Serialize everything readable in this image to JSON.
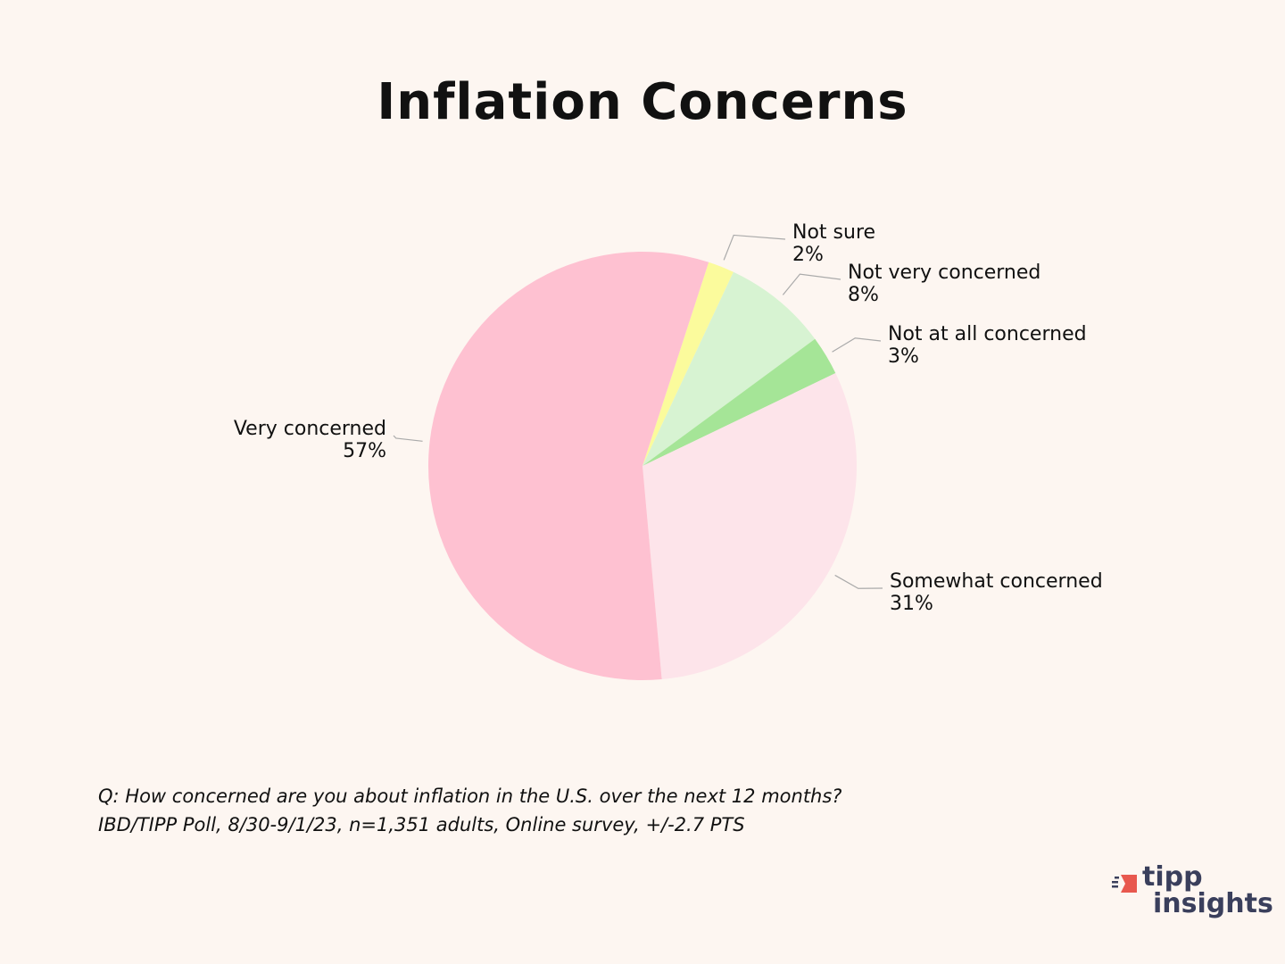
{
  "chart_data": {
    "type": "pie",
    "title": "Inflation Concerns",
    "slices": [
      {
        "label": "Not sure",
        "value": 2,
        "display": "2%",
        "color": "#fbfb9c"
      },
      {
        "label": "Not very concerned",
        "value": 8,
        "display": "8%",
        "color": "#d7f3d2"
      },
      {
        "label": "Not at all concerned",
        "value": 3,
        "display": "3%",
        "color": "#a5e597"
      },
      {
        "label": "Somewhat concerned",
        "value": 31,
        "display": "31%",
        "color": "#fde4ea"
      },
      {
        "label": "Very concerned",
        "value": 57,
        "display": "57%",
        "color": "#fec1d1"
      }
    ],
    "start_angle_deg": 18,
    "direction": "clockwise"
  },
  "footer": {
    "question": "Q:  How concerned are you about inflation in the U.S. over the next 12 months?",
    "source": "IBD/TIPP Poll, 8/30-9/1/23, n=1,351 adults, Online survey, +/-2.7 PTS"
  },
  "logo": {
    "line1": "tipp",
    "line2": "insights",
    "accent_color": "#e8584e",
    "text_color": "#3a3f5c"
  },
  "colors": {
    "background": "#fdf6f1",
    "leader_line": "#aaaaaa"
  }
}
